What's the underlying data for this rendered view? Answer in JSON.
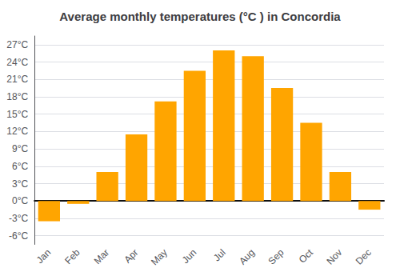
{
  "chart_data": {
    "type": "bar",
    "title": "Average monthly temperatures (°C ) in Concordia",
    "categories": [
      "Jan",
      "Feb",
      "Mar",
      "Apr",
      "May",
      "Jun",
      "Jul",
      "Aug",
      "Sep",
      "Oct",
      "Nov",
      "Dec"
    ],
    "values": [
      -3.5,
      -0.5,
      5.0,
      11.5,
      17.2,
      22.5,
      26.0,
      25.0,
      19.5,
      13.5,
      5.0,
      -1.5
    ],
    "color": "#FFA500",
    "ylim": [
      -7.5,
      28.5
    ],
    "yticks": [
      {
        "value": -6,
        "label": "-6°C"
      },
      {
        "value": -3,
        "label": "-3°C"
      },
      {
        "value": 0,
        "label": "0°C"
      },
      {
        "value": 3,
        "label": "3°C"
      },
      {
        "value": 6,
        "label": "6°C"
      },
      {
        "value": 9,
        "label": "9°C"
      },
      {
        "value": 12,
        "label": "12°C"
      },
      {
        "value": 15,
        "label": "15°C"
      },
      {
        "value": 18,
        "label": "18°C"
      },
      {
        "value": 21,
        "label": "21°C"
      },
      {
        "value": 24,
        "label": "24°C"
      },
      {
        "value": 27,
        "label": "27°C"
      }
    ],
    "grid": true
  }
}
